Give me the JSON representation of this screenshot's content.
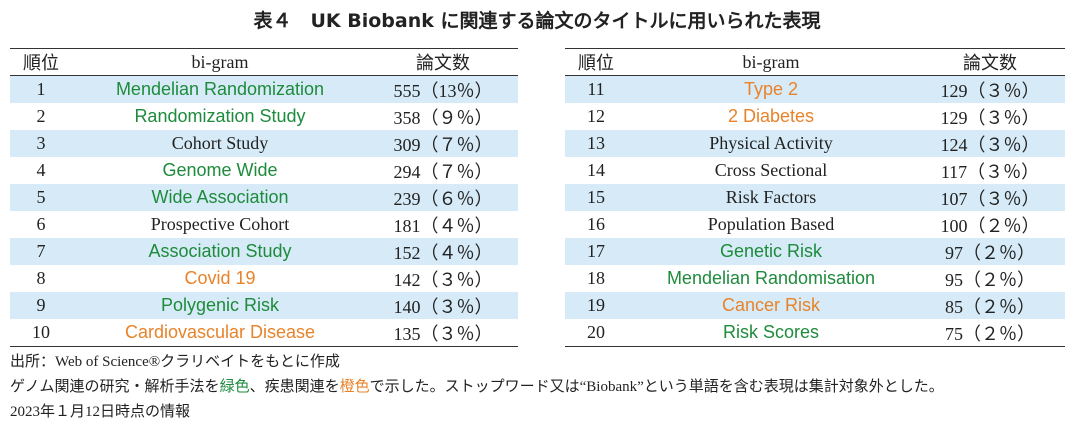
{
  "title": "表４　UK Biobank に関連する論文のタイトルに用いられた表現",
  "tables": [
    {
      "headers": [
        "順位",
        "bi-gram",
        "論文数"
      ],
      "rows": [
        {
          "rank": "1",
          "bigram": "Mendelian Randomization",
          "count": "555（13％）",
          "color": "#1e8b3c"
        },
        {
          "rank": "2",
          "bigram": "Randomization Study",
          "count": "358（９％）",
          "color": "#1e8b3c"
        },
        {
          "rank": "3",
          "bigram": "Cohort Study",
          "count": "309（７％）",
          "color": "#222222"
        },
        {
          "rank": "4",
          "bigram": "Genome Wide",
          "count": "294（７％）",
          "color": "#1e8b3c"
        },
        {
          "rank": "5",
          "bigram": "Wide Association",
          "count": "239（６％）",
          "color": "#1e8b3c"
        },
        {
          "rank": "6",
          "bigram": "Prospective Cohort",
          "count": "181（４％）",
          "color": "#222222"
        },
        {
          "rank": "7",
          "bigram": "Association Study",
          "count": "152（４％）",
          "color": "#1e8b3c"
        },
        {
          "rank": "8",
          "bigram": "Covid 19",
          "count": "142（３％）",
          "color": "#e8832a"
        },
        {
          "rank": "9",
          "bigram": "Polygenic Risk",
          "count": "140（３％）",
          "color": "#1e8b3c"
        },
        {
          "rank": "10",
          "bigram": "Cardiovascular Disease",
          "count": "135（３％）",
          "color": "#e8832a"
        }
      ]
    },
    {
      "headers": [
        "順位",
        "bi-gram",
        "論文数"
      ],
      "rows": [
        {
          "rank": "11",
          "bigram": "Type 2",
          "count": "129（３％）",
          "color": "#e8832a"
        },
        {
          "rank": "12",
          "bigram": "2 Diabetes",
          "count": "129（３％）",
          "color": "#e8832a"
        },
        {
          "rank": "13",
          "bigram": "Physical Activity",
          "count": "124（３％）",
          "color": "#222222"
        },
        {
          "rank": "14",
          "bigram": "Cross Sectional",
          "count": "117（３％）",
          "color": "#222222"
        },
        {
          "rank": "15",
          "bigram": "Risk Factors",
          "count": "107（３％）",
          "color": "#222222"
        },
        {
          "rank": "16",
          "bigram": "Population Based",
          "count": "100（２％）",
          "color": "#222222"
        },
        {
          "rank": "17",
          "bigram": "Genetic Risk",
          "count": "97（２％）",
          "color": "#1e8b3c"
        },
        {
          "rank": "18",
          "bigram": "Mendelian Randomisation",
          "count": "95（２％）",
          "color": "#1e8b3c"
        },
        {
          "rank": "19",
          "bigram": "Cancer Risk",
          "count": "85（２％）",
          "color": "#e8832a"
        },
        {
          "rank": "20",
          "bigram": "Risk Scores",
          "count": "75（２％）",
          "color": "#1e8b3c"
        }
      ]
    }
  ],
  "notes": [
    [
      {
        "text": "出所：Web of Science®クラリベイトをもとに作成",
        "color": "#222222"
      }
    ],
    [
      {
        "text": "ゲノム関連の研究・解析手法を",
        "color": "#222222"
      },
      {
        "text": "緑色",
        "color": "#1e8b3c"
      },
      {
        "text": "、疾患関連を",
        "color": "#222222"
      },
      {
        "text": "橙色",
        "color": "#e8832a"
      },
      {
        "text": "で示した。ストップワード又は“Biobank”という単語を含む表現は集計対象外とした。",
        "color": "#222222"
      }
    ],
    [
      {
        "text": "2023年１月12日時点の情報",
        "color": "#222222"
      }
    ]
  ]
}
